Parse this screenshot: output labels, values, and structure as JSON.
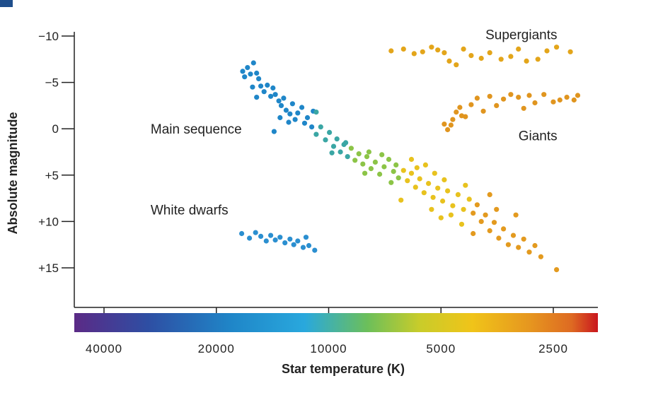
{
  "chart_data": {
    "type": "scatter",
    "title": "",
    "xlabel": "Star temperature (K)",
    "ylabel": "Absolute magnitude",
    "x_scale": "log",
    "x_reversed": true,
    "x_ticks": [
      {
        "value": 40000,
        "label": "40000"
      },
      {
        "value": 20000,
        "label": "20000"
      },
      {
        "value": 10000,
        "label": "10000"
      },
      {
        "value": 5000,
        "label": "5000"
      },
      {
        "value": 2500,
        "label": "2500"
      }
    ],
    "y_reversed": true,
    "ylim": [
      19,
      -10
    ],
    "y_ticks": [
      {
        "value": -10,
        "label": "−10"
      },
      {
        "value": -5,
        "label": "−5"
      },
      {
        "value": 0,
        "label": "0"
      },
      {
        "value": 5,
        "label": "+5"
      },
      {
        "value": 10,
        "label": "+10"
      },
      {
        "value": 15,
        "label": "+15"
      }
    ],
    "colorbar": {
      "stops": [
        {
          "offset": 0.0,
          "color": "#5b2a86"
        },
        {
          "offset": 0.14,
          "color": "#2e4ea3"
        },
        {
          "offset": 0.3,
          "color": "#1f86c8"
        },
        {
          "offset": 0.44,
          "color": "#29a8dd"
        },
        {
          "offset": 0.56,
          "color": "#6cbf5a"
        },
        {
          "offset": 0.66,
          "color": "#c9cc2a"
        },
        {
          "offset": 0.76,
          "color": "#f0c419"
        },
        {
          "offset": 0.87,
          "color": "#e6961f"
        },
        {
          "offset": 0.95,
          "color": "#de6a22"
        },
        {
          "offset": 1.0,
          "color": "#c9161e"
        }
      ]
    },
    "annotations": [
      {
        "text": "Supergiants",
        "x": 3800,
        "y": -10.2
      },
      {
        "text": "Main sequence",
        "x": 30000,
        "y": 0
      },
      {
        "text": "Giants",
        "x": 3100,
        "y": 0.7
      },
      {
        "text": "White dwarfs",
        "x": 30000,
        "y": 8.7
      }
    ],
    "series": [
      {
        "color": "#e3a51a",
        "points": [
          [
            6800,
            -8.4
          ],
          [
            6300,
            -8.6
          ],
          [
            5900,
            -8.1
          ],
          [
            5600,
            -8.3
          ],
          [
            5300,
            -8.8
          ],
          [
            5100,
            -8.5
          ],
          [
            4900,
            -8.2
          ],
          [
            4750,
            -7.3
          ],
          [
            4550,
            -6.9
          ],
          [
            4350,
            -8.6
          ],
          [
            4150,
            -7.9
          ],
          [
            3900,
            -7.6
          ],
          [
            3700,
            -8.2
          ],
          [
            3450,
            -7.5
          ],
          [
            3250,
            -7.8
          ],
          [
            3100,
            -8.6
          ],
          [
            2950,
            -7.3
          ],
          [
            2750,
            -7.5
          ],
          [
            2600,
            -8.4
          ],
          [
            2450,
            -8.8
          ],
          [
            2250,
            -8.3
          ]
        ]
      },
      {
        "color": "#e0951f",
        "points": [
          [
            4800,
            0.1
          ],
          [
            4700,
            -0.4
          ],
          [
            4650,
            -1.0
          ],
          [
            4550,
            -1.8
          ],
          [
            4450,
            -2.3
          ],
          [
            4300,
            -1.3
          ],
          [
            4150,
            -2.6
          ],
          [
            4000,
            -3.3
          ],
          [
            3850,
            -1.9
          ],
          [
            3700,
            -3.5
          ],
          [
            3550,
            -2.5
          ],
          [
            3400,
            -3.2
          ],
          [
            3250,
            -3.7
          ],
          [
            3100,
            -3.4
          ],
          [
            3000,
            -2.2
          ],
          [
            2900,
            -3.6
          ],
          [
            2800,
            -2.8
          ],
          [
            2650,
            -3.7
          ],
          [
            2500,
            -2.9
          ],
          [
            2400,
            -3.1
          ],
          [
            2300,
            -3.4
          ],
          [
            2200,
            -3.1
          ],
          [
            2150,
            -3.6
          ],
          [
            4900,
            -0.5
          ],
          [
            4400,
            -1.4
          ]
        ]
      },
      {
        "color": "#1f86c8",
        "points": [
          [
            16800,
            -5.6
          ],
          [
            17000,
            -6.2
          ],
          [
            16500,
            -6.6
          ],
          [
            16200,
            -5.9
          ],
          [
            15900,
            -7.1
          ],
          [
            15600,
            -6.0
          ],
          [
            15400,
            -5.4
          ],
          [
            15200,
            -4.6
          ],
          [
            14900,
            -4.0
          ],
          [
            14600,
            -4.7
          ],
          [
            14300,
            -3.5
          ],
          [
            14100,
            -4.4
          ],
          [
            13900,
            -3.7
          ],
          [
            13600,
            -3.0
          ],
          [
            13400,
            -2.5
          ],
          [
            13200,
            -3.3
          ],
          [
            13000,
            -2.0
          ],
          [
            12700,
            -1.6
          ],
          [
            12500,
            -2.7
          ],
          [
            12300,
            -1.0
          ],
          [
            12100,
            -1.7
          ],
          [
            11800,
            -2.3
          ],
          [
            11600,
            -0.6
          ],
          [
            11400,
            -1.2
          ],
          [
            11100,
            -0.2
          ],
          [
            14000,
            0.3
          ],
          [
            13500,
            -1.2
          ],
          [
            12800,
            -0.7
          ],
          [
            15600,
            -3.4
          ],
          [
            16000,
            -4.5
          ],
          [
            11000,
            -1.9
          ]
        ]
      },
      {
        "color": "#3aa6a4",
        "points": [
          [
            10800,
            0.6
          ],
          [
            10500,
            -0.2
          ],
          [
            10200,
            1.2
          ],
          [
            9950,
            0.4
          ],
          [
            9700,
            1.9
          ],
          [
            9500,
            1.1
          ],
          [
            9300,
            2.5
          ],
          [
            9100,
            1.7
          ],
          [
            8900,
            3.0
          ],
          [
            10800,
            -1.8
          ],
          [
            9800,
            2.6
          ],
          [
            9000,
            1.5
          ]
        ]
      },
      {
        "color": "#8cc447",
        "points": [
          [
            8700,
            2.1
          ],
          [
            8500,
            3.4
          ],
          [
            8300,
            2.7
          ],
          [
            8100,
            3.8
          ],
          [
            7900,
            3.0
          ],
          [
            7700,
            4.3
          ],
          [
            7500,
            3.6
          ],
          [
            7300,
            4.9
          ],
          [
            7100,
            4.1
          ],
          [
            6900,
            3.3
          ],
          [
            6700,
            4.6
          ],
          [
            6500,
            5.3
          ],
          [
            7800,
            2.5
          ],
          [
            7200,
            2.8
          ],
          [
            6800,
            5.8
          ],
          [
            8000,
            4.8
          ],
          [
            6600,
            3.9
          ]
        ]
      },
      {
        "color": "#e8c21e",
        "points": [
          [
            6300,
            4.5
          ],
          [
            6150,
            5.6
          ],
          [
            6000,
            4.8
          ],
          [
            5850,
            6.3
          ],
          [
            5700,
            5.4
          ],
          [
            5550,
            6.9
          ],
          [
            5400,
            5.9
          ],
          [
            5250,
            7.4
          ],
          [
            5100,
            6.4
          ],
          [
            4950,
            7.8
          ],
          [
            4800,
            6.7
          ],
          [
            4650,
            8.3
          ],
          [
            4500,
            7.1
          ],
          [
            4350,
            8.7
          ],
          [
            4200,
            7.6
          ],
          [
            6400,
            7.7
          ],
          [
            5800,
            4.2
          ],
          [
            5300,
            8.7
          ],
          [
            5000,
            9.6
          ],
          [
            4700,
            9.3
          ],
          [
            4400,
            10.3
          ],
          [
            4300,
            6.1
          ],
          [
            6000,
            3.3
          ],
          [
            5500,
            3.9
          ],
          [
            5200,
            4.8
          ],
          [
            4900,
            5.5
          ]
        ]
      },
      {
        "color": "#e39a1f",
        "points": [
          [
            4100,
            9.1
          ],
          [
            4000,
            8.2
          ],
          [
            3900,
            10.0
          ],
          [
            3800,
            9.3
          ],
          [
            3700,
            11.0
          ],
          [
            3600,
            10.1
          ],
          [
            3500,
            11.8
          ],
          [
            3400,
            10.8
          ],
          [
            3300,
            12.5
          ],
          [
            3200,
            11.5
          ],
          [
            3100,
            12.8
          ],
          [
            3000,
            11.9
          ],
          [
            2900,
            13.3
          ],
          [
            2800,
            12.6
          ],
          [
            2700,
            13.8
          ],
          [
            2450,
            15.2
          ],
          [
            4100,
            11.3
          ],
          [
            3550,
            8.7
          ],
          [
            3150,
            9.3
          ],
          [
            3700,
            7.1
          ]
        ]
      },
      {
        "color": "#2b8fd0",
        "points": [
          [
            17100,
            11.3
          ],
          [
            16300,
            11.8
          ],
          [
            15700,
            11.2
          ],
          [
            15200,
            11.6
          ],
          [
            14700,
            12.1
          ],
          [
            14300,
            11.5
          ],
          [
            13900,
            12.0
          ],
          [
            13500,
            11.7
          ],
          [
            13100,
            12.3
          ],
          [
            12700,
            11.9
          ],
          [
            12400,
            12.5
          ],
          [
            12100,
            12.1
          ],
          [
            11700,
            12.8
          ],
          [
            11300,
            12.6
          ],
          [
            10900,
            13.1
          ],
          [
            11500,
            11.7
          ]
        ]
      }
    ]
  }
}
